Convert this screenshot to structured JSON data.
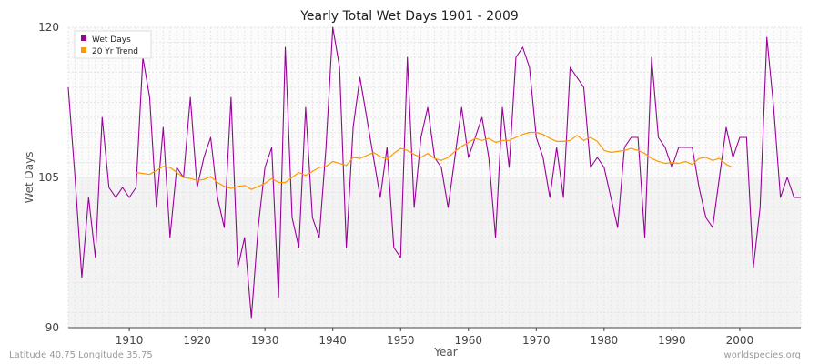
{
  "chart_data": {
    "type": "line",
    "title": "Yearly Total Wet Days 1901 - 2009",
    "xlabel": "Year",
    "ylabel": "Wet Days",
    "xlim": [
      1901,
      2009
    ],
    "ylim": [
      90,
      120
    ],
    "xticks": [
      1910,
      1920,
      1930,
      1940,
      1950,
      1960,
      1970,
      1980,
      1990,
      2000
    ],
    "yticks": [
      90,
      105,
      120
    ],
    "grid": true,
    "legend_position": "top-left",
    "series": [
      {
        "name": "Wet Days",
        "color": "#990099",
        "x": [
          1901,
          1902,
          1903,
          1904,
          1905,
          1906,
          1907,
          1908,
          1909,
          1910,
          1911,
          1912,
          1913,
          1914,
          1915,
          1916,
          1917,
          1918,
          1919,
          1920,
          1921,
          1922,
          1923,
          1924,
          1925,
          1926,
          1927,
          1928,
          1929,
          1930,
          1931,
          1932,
          1933,
          1934,
          1935,
          1936,
          1937,
          1938,
          1939,
          1940,
          1941,
          1942,
          1943,
          1944,
          1945,
          1946,
          1947,
          1948,
          1949,
          1950,
          1951,
          1952,
          1953,
          1954,
          1955,
          1956,
          1957,
          1958,
          1959,
          1960,
          1961,
          1962,
          1963,
          1964,
          1965,
          1966,
          1967,
          1968,
          1969,
          1970,
          1971,
          1972,
          1973,
          1974,
          1975,
          1976,
          1977,
          1978,
          1979,
          1980,
          1981,
          1982,
          1983,
          1984,
          1985,
          1986,
          1987,
          1988,
          1989,
          1990,
          1991,
          1992,
          1993,
          1994,
          1995,
          1996,
          1997,
          1998,
          1999,
          2000,
          2001,
          2002,
          2003,
          2004,
          2005,
          2006,
          2007,
          2008,
          2009
        ],
        "values": [
          114,
          105,
          95,
          103,
          97,
          111,
          104,
          103,
          104,
          103,
          104,
          117,
          113,
          102,
          110,
          99,
          106,
          105,
          113,
          104,
          107,
          109,
          103,
          100,
          113,
          96,
          99,
          91,
          100,
          106,
          108,
          93,
          118,
          101,
          98,
          112,
          101,
          99,
          108,
          120,
          116,
          98,
          110,
          115,
          111,
          107,
          103,
          108,
          98,
          97,
          117,
          102,
          109,
          112,
          107,
          106,
          102,
          107,
          112,
          107,
          109,
          111,
          107,
          99,
          112,
          106,
          117,
          118,
          116,
          109,
          107,
          103,
          108,
          103,
          116,
          115,
          114,
          106,
          107,
          106,
          103,
          100,
          108,
          109,
          109,
          99,
          117,
          109,
          108,
          106,
          108,
          108,
          108,
          104,
          101,
          100,
          105,
          110,
          107,
          109,
          109,
          96,
          102,
          119,
          112,
          103,
          105,
          103,
          103
        ]
      },
      {
        "name": "20 Yr Trend",
        "color": "#ff9900",
        "x": [
          1911,
          1912,
          1913,
          1914,
          1915,
          1916,
          1917,
          1918,
          1919,
          1920,
          1921,
          1922,
          1923,
          1924,
          1925,
          1926,
          1927,
          1928,
          1929,
          1930,
          1931,
          1932,
          1933,
          1934,
          1935,
          1936,
          1937,
          1938,
          1939,
          1940,
          1941,
          1942,
          1943,
          1944,
          1945,
          1946,
          1947,
          1948,
          1949,
          1950,
          1951,
          1952,
          1953,
          1954,
          1955,
          1956,
          1957,
          1958,
          1959,
          1960,
          1961,
          1962,
          1963,
          1964,
          1965,
          1966,
          1967,
          1968,
          1969,
          1970,
          1971,
          1972,
          1973,
          1974,
          1975,
          1976,
          1977,
          1978,
          1979,
          1980,
          1981,
          1982,
          1983,
          1984,
          1985,
          1986,
          1987,
          1988,
          1989,
          1990,
          1991,
          1992,
          1993,
          1994,
          1995,
          1996,
          1997,
          1998,
          1999
        ],
        "values": [
          105.5,
          105.4,
          105.3,
          105.7,
          106.1,
          106.0,
          105.5,
          105.0,
          104.9,
          104.7,
          104.8,
          105.1,
          104.5,
          104.1,
          103.9,
          104.1,
          104.2,
          103.8,
          104.1,
          104.4,
          104.9,
          104.5,
          104.5,
          105.0,
          105.5,
          105.2,
          105.6,
          106.0,
          106.1,
          106.6,
          106.4,
          106.2,
          107.0,
          106.9,
          107.2,
          107.5,
          107.1,
          106.8,
          107.4,
          107.9,
          107.7,
          107.3,
          107.0,
          107.4,
          106.9,
          106.7,
          107.0,
          107.6,
          108.1,
          108.5,
          108.9,
          108.7,
          108.9,
          108.5,
          108.7,
          108.7,
          109.0,
          109.3,
          109.5,
          109.5,
          109.3,
          108.9,
          108.6,
          108.6,
          108.7,
          109.2,
          108.7,
          109.0,
          108.6,
          107.7,
          107.5,
          107.6,
          107.7,
          107.9,
          107.7,
          107.4,
          106.9,
          106.6,
          106.4,
          106.5,
          106.4,
          106.6,
          106.3,
          106.9,
          107.0,
          106.7,
          106.9,
          106.3,
          106.0
        ]
      }
    ]
  },
  "footer": {
    "left": "Latitude 40.75 Longitude 35.75",
    "right": "worldspecies.org"
  }
}
